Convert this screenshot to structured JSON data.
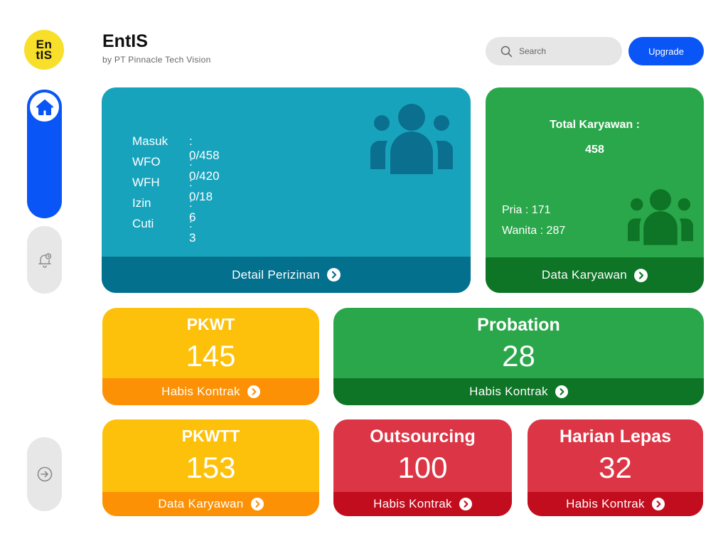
{
  "colors": {
    "primary": "#0a55f5",
    "teal": "#18a3bd",
    "teal_dark": "#03708e",
    "green": "#2aa74a",
    "green_dark": "#0e7426",
    "yellow": "#fdc10b",
    "orange": "#fc9106",
    "red": "#dc3545",
    "red_dark": "#c10d1d",
    "logo_yellow": "#f7df2a"
  },
  "logo": {
    "line1": "En",
    "line2": "tIS"
  },
  "header": {
    "title": "EntIS",
    "subtitle": "by PT Pinnacle Tech Vision",
    "search_placeholder": "Search",
    "search_icon": "search-icon",
    "upgrade_label": "Upgrade"
  },
  "sidebar": {
    "items": [
      {
        "name": "home",
        "icon": "home-icon",
        "active": true
      },
      {
        "name": "notifications",
        "icon": "bell-clock-icon",
        "active": false
      },
      {
        "name": "logout",
        "icon": "logout-icon",
        "active": false
      }
    ]
  },
  "attendance": {
    "rows": [
      {
        "label": "Masuk",
        "value": ": 0/458"
      },
      {
        "label": "WFO",
        "value": ": 0/420"
      },
      {
        "label": "WFH",
        "value": ": 0/18"
      },
      {
        "label": "Izin",
        "value": ": 6"
      },
      {
        "label": "Cuti",
        "value": ": 3"
      }
    ],
    "icon": "people-group-icon",
    "footer": "Detail Perizinan"
  },
  "total": {
    "title": "Total Karyawan :",
    "value": "458",
    "male": "Pria : 171",
    "female": "Wanita : 287",
    "icon": "people-group-icon",
    "footer": "Data Karyawan"
  },
  "cards": {
    "pkwt": {
      "title": "PKWT",
      "value": "145",
      "footer": "Habis Kontrak"
    },
    "probation": {
      "title": "Probation",
      "value": "28",
      "footer": "Habis Kontrak"
    },
    "pkwtt": {
      "title": "PKWTT",
      "value": "153",
      "footer": "Data Karyawan"
    },
    "outsourcing": {
      "title": "Outsourcing",
      "value": "100",
      "footer": "Habis Kontrak"
    },
    "harian": {
      "title": "Harian Lepas",
      "value": "32",
      "footer": "Habis Kontrak"
    }
  }
}
